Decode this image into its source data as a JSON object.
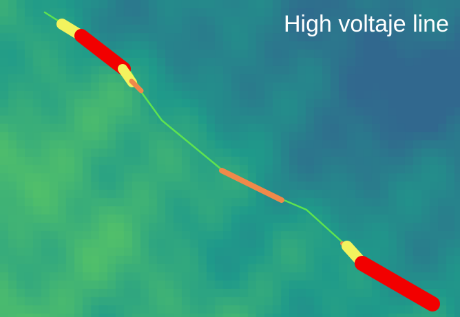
{
  "map": {
    "title": "High voltaje line",
    "colors": {
      "line": "#5ee34f",
      "risk_high": "#f20000",
      "risk_medium": "#f3f35e",
      "risk_orange": "#f0894a",
      "raster_low": "#31688e",
      "raster_mid": "#1f9a8a",
      "raster_high": "#5ec962"
    }
  }
}
